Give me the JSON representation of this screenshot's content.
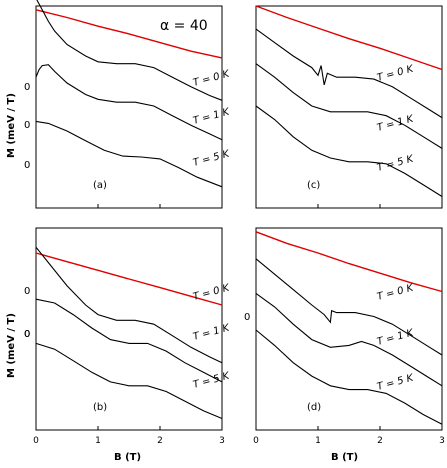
{
  "figure": {
    "ylabel": "M (meV / T)",
    "xlabel": "B (T)",
    "alpha_annotation": "α = 40"
  },
  "chart_data": [
    {
      "panel": "(a)",
      "type": "line",
      "xlim": [
        0,
        3
      ],
      "xticks": [],
      "zero_labels": [
        "0",
        "0",
        "0"
      ],
      "series": [
        {
          "name": "",
          "color": "#e00000",
          "curve": "bound",
          "points": [
            [
              0,
              0.2
            ],
            [
              0.5,
              0.6
            ],
            [
              1,
              1.05
            ],
            [
              1.5,
              1.45
            ],
            [
              2,
              1.9
            ],
            [
              2.5,
              2.35
            ],
            [
              3,
              2.7
            ]
          ]
        },
        {
          "name": "",
          "label": "T = 0 K",
          "color": "#000000",
          "points": [
            [
              0,
              -0.4
            ],
            [
              0.1,
              0.2
            ],
            [
              0.2,
              0.8
            ],
            [
              0.3,
              1.3
            ],
            [
              0.5,
              2.0
            ],
            [
              0.8,
              2.6
            ],
            [
              1.0,
              2.9
            ],
            [
              1.3,
              3.0
            ],
            [
              1.6,
              3.0
            ],
            [
              1.9,
              3.2
            ],
            [
              2.2,
              3.7
            ],
            [
              2.5,
              4.2
            ],
            [
              2.8,
              4.65
            ],
            [
              3,
              4.9
            ]
          ]
        },
        {
          "name": "",
          "color": "#000000",
          "points": [
            [
              0,
              3.7
            ],
            [
              0.05,
              3.3
            ],
            [
              0.1,
              3.1
            ],
            [
              0.2,
              3.05
            ],
            [
              0.3,
              3.4
            ],
            [
              0.5,
              4.0
            ],
            [
              0.8,
              4.6
            ],
            [
              1.0,
              4.85
            ],
            [
              1.3,
              5.0
            ],
            [
              1.6,
              5.0
            ],
            [
              1.9,
              5.2
            ],
            [
              2.2,
              5.7
            ],
            [
              2.5,
              6.2
            ],
            [
              2.8,
              6.65
            ],
            [
              3,
              6.95
            ]
          ]
        },
        {
          "name": "",
          "label": "T = 1 K",
          "color": "#000000",
          "label_at": [
            1.9,
            5.75
          ]
        },
        {
          "name": "",
          "label": "T = 5 K",
          "color": "#000000",
          "points": [
            [
              0,
              6.0
            ],
            [
              0.2,
              6.1
            ],
            [
              0.5,
              6.5
            ],
            [
              0.8,
              7.0
            ],
            [
              1.1,
              7.5
            ],
            [
              1.4,
              7.8
            ],
            [
              1.7,
              7.85
            ],
            [
              2.0,
              7.95
            ],
            [
              2.3,
              8.4
            ],
            [
              2.6,
              8.9
            ],
            [
              3,
              9.4
            ]
          ]
        }
      ]
    },
    {
      "panel": "(b)",
      "type": "line",
      "xlim": [
        0,
        3
      ],
      "xticks": [
        "0",
        "1",
        "2",
        "3"
      ],
      "zero_labels": [
        "0",
        "0",
        "0"
      ],
      "series": [
        {
          "name": "",
          "color": "#e00000",
          "points": [
            [
              0,
              1.3
            ],
            [
              0.5,
              1.75
            ],
            [
              1,
              2.2
            ],
            [
              1.5,
              2.65
            ],
            [
              2,
              3.1
            ],
            [
              2.5,
              3.55
            ],
            [
              3,
              4.0
            ]
          ]
        },
        {
          "name": "",
          "label": "T = 0 K",
          "color": "#000000",
          "points": [
            [
              0,
              1.0
            ],
            [
              0.2,
              1.8
            ],
            [
              0.5,
              3.0
            ],
            [
              0.8,
              4.0
            ],
            [
              1.0,
              4.5
            ],
            [
              1.3,
              4.8
            ],
            [
              1.6,
              4.8
            ],
            [
              1.9,
              5.0
            ],
            [
              2.2,
              5.6
            ],
            [
              2.5,
              6.2
            ],
            [
              2.8,
              6.7
            ],
            [
              3,
              7.0
            ]
          ]
        },
        {
          "name": "",
          "label": "T = 1 K",
          "color": "#000000",
          "points": [
            [
              0,
              3.7
            ],
            [
              0.3,
              3.9
            ],
            [
              0.6,
              4.5
            ],
            [
              0.9,
              5.2
            ],
            [
              1.2,
              5.8
            ],
            [
              1.5,
              6.0
            ],
            [
              1.8,
              6.0
            ],
            [
              2.1,
              6.4
            ],
            [
              2.4,
              7.0
            ],
            [
              2.7,
              7.5
            ],
            [
              3,
              8.0
            ]
          ]
        },
        {
          "name": "",
          "label": "T = 5 K",
          "color": "#000000",
          "points": [
            [
              0,
              6.0
            ],
            [
              0.3,
              6.3
            ],
            [
              0.6,
              6.9
            ],
            [
              0.9,
              7.5
            ],
            [
              1.2,
              8.0
            ],
            [
              1.5,
              8.2
            ],
            [
              1.8,
              8.2
            ],
            [
              2.1,
              8.5
            ],
            [
              2.4,
              9.0
            ],
            [
              2.7,
              9.5
            ],
            [
              3,
              9.9
            ]
          ]
        }
      ]
    },
    {
      "panel": "(c)",
      "type": "line",
      "xlim": [
        0,
        3
      ],
      "xticks": [],
      "zero_labels": [],
      "series": [
        {
          "name": "",
          "color": "#e00000",
          "points": [
            [
              0,
              0.0
            ],
            [
              0.5,
              0.6
            ],
            [
              1,
              1.15
            ],
            [
              1.5,
              1.7
            ],
            [
              2,
              2.2
            ],
            [
              2.5,
              2.75
            ],
            [
              3,
              3.3
            ]
          ]
        },
        {
          "name": "",
          "label": "T = 0 K",
          "color": "#000000",
          "points": [
            [
              0,
              1.2
            ],
            [
              0.3,
              1.9
            ],
            [
              0.6,
              2.6
            ],
            [
              0.9,
              3.2
            ],
            [
              1.0,
              3.6
            ],
            [
              1.05,
              3.1
            ],
            [
              1.1,
              4.1
            ],
            [
              1.15,
              3.5
            ],
            [
              1.3,
              3.7
            ],
            [
              1.6,
              3.7
            ],
            [
              1.9,
              3.8
            ],
            [
              2.2,
              4.2
            ],
            [
              2.5,
              4.8
            ],
            [
              2.8,
              5.4
            ],
            [
              3,
              5.8
            ]
          ]
        },
        {
          "name": "",
          "label": "T = 1 K",
          "color": "#000000",
          "points": [
            [
              0,
              3.0
            ],
            [
              0.3,
              3.7
            ],
            [
              0.6,
              4.5
            ],
            [
              0.9,
              5.2
            ],
            [
              1.2,
              5.5
            ],
            [
              1.5,
              5.5
            ],
            [
              1.8,
              5.5
            ],
            [
              2.1,
              5.7
            ],
            [
              2.4,
              6.2
            ],
            [
              2.7,
              6.8
            ],
            [
              3,
              7.4
            ]
          ]
        },
        {
          "name": "",
          "label": "T = 5 K",
          "color": "#000000",
          "points": [
            [
              0,
              5.2
            ],
            [
              0.3,
              5.9
            ],
            [
              0.6,
              6.8
            ],
            [
              0.9,
              7.5
            ],
            [
              1.2,
              7.9
            ],
            [
              1.5,
              8.1
            ],
            [
              1.8,
              8.1
            ],
            [
              2.1,
              8.2
            ],
            [
              2.4,
              8.7
            ],
            [
              2.7,
              9.3
            ],
            [
              3,
              9.9
            ]
          ]
        }
      ]
    },
    {
      "panel": "(d)",
      "type": "line",
      "xlim": [
        0,
        3
      ],
      "xticks": [
        "0",
        "1",
        "2",
        "3"
      ],
      "zero_labels": [
        "0"
      ],
      "series": [
        {
          "name": "",
          "color": "#e00000",
          "points": [
            [
              0,
              0.2
            ],
            [
              0.5,
              0.8
            ],
            [
              1,
              1.3
            ],
            [
              1.5,
              1.85
            ],
            [
              2,
              2.35
            ],
            [
              2.5,
              2.85
            ],
            [
              3,
              3.3
            ]
          ]
        },
        {
          "name": "",
          "label": "T = 0 K",
          "color": "#000000",
          "points": [
            [
              0,
              1.6
            ],
            [
              0.3,
              2.4
            ],
            [
              0.6,
              3.2
            ],
            [
              0.9,
              4.0
            ],
            [
              1.1,
              4.5
            ],
            [
              1.2,
              4.9
            ],
            [
              1.22,
              4.3
            ],
            [
              1.3,
              4.4
            ],
            [
              1.6,
              4.4
            ],
            [
              1.9,
              4.6
            ],
            [
              2.2,
              5.0
            ],
            [
              2.5,
              5.6
            ],
            [
              2.8,
              6.2
            ],
            [
              3,
              6.6
            ]
          ]
        },
        {
          "name": "",
          "label": "T = 1 K",
          "color": "#000000",
          "points": [
            [
              0,
              3.4
            ],
            [
              0.3,
              4.1
            ],
            [
              0.6,
              5.0
            ],
            [
              0.9,
              5.8
            ],
            [
              1.2,
              6.2
            ],
            [
              1.5,
              6.1
            ],
            [
              1.7,
              5.9
            ],
            [
              1.9,
              6.1
            ],
            [
              2.2,
              6.6
            ],
            [
              2.5,
              7.2
            ],
            [
              2.8,
              7.8
            ],
            [
              3,
              8.2
            ]
          ]
        },
        {
          "name": "",
          "label": "T = 5 K",
          "color": "#000000",
          "points": [
            [
              0,
              5.3
            ],
            [
              0.3,
              6.1
            ],
            [
              0.6,
              7.0
            ],
            [
              0.9,
              7.7
            ],
            [
              1.2,
              8.2
            ],
            [
              1.5,
              8.4
            ],
            [
              1.8,
              8.4
            ],
            [
              2.1,
              8.6
            ],
            [
              2.4,
              9.1
            ],
            [
              2.7,
              9.7
            ],
            [
              3,
              10.2
            ]
          ]
        }
      ]
    }
  ]
}
